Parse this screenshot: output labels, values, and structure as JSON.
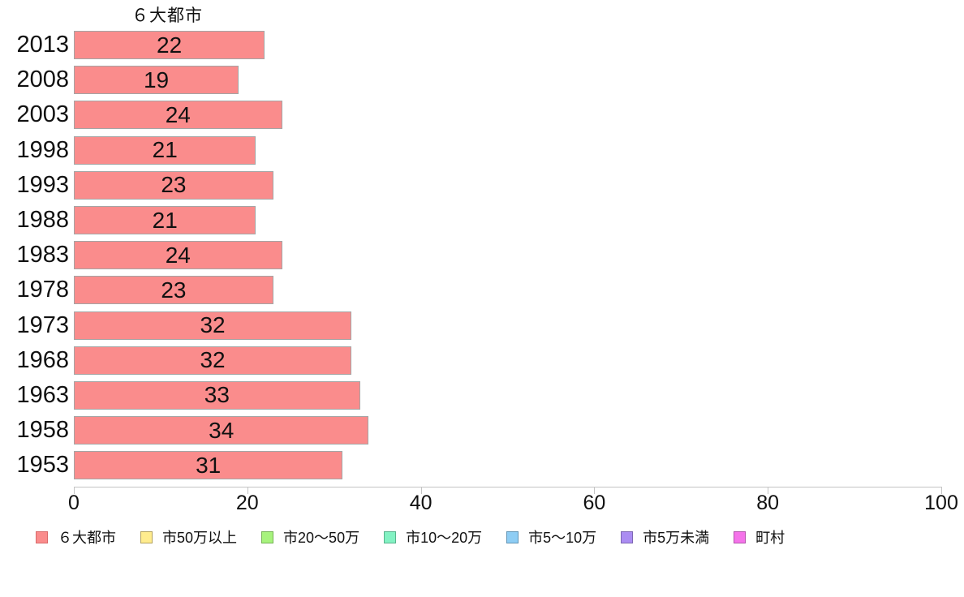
{
  "chart_data": {
    "type": "bar",
    "orientation": "horizontal",
    "title": "６大都市",
    "categories": [
      "2013",
      "2008",
      "2003",
      "1998",
      "1993",
      "1988",
      "1983",
      "1978",
      "1973",
      "1968",
      "1963",
      "1958",
      "1953"
    ],
    "values": [
      22,
      19,
      24,
      21,
      23,
      21,
      24,
      23,
      32,
      32,
      33,
      34,
      31
    ],
    "bar_labels": [
      "22",
      "19",
      "24",
      "21",
      "23",
      "21",
      "24",
      "23",
      "32",
      "32",
      "33",
      "34",
      "31"
    ],
    "xlabel": "",
    "ylabel": "",
    "xlim": [
      0,
      100
    ],
    "x_ticks": [
      "0",
      "20",
      "40",
      "60",
      "80",
      "100"
    ],
    "grid": false,
    "bar_color": "#fa8c8c",
    "bar_border_color": "#a5a5a5",
    "axis_color": "#c4c4c4",
    "text_color": "#111111",
    "legend_position": "bottom",
    "legend": [
      {
        "label": "６大都市",
        "color": "#fa8c8c",
        "border": "#d96a6a"
      },
      {
        "label": "市50万以上",
        "color": "#ffec8e",
        "border": "#b3a25f"
      },
      {
        "label": "市20～50万",
        "color": "#a7f37d",
        "border": "#76b356"
      },
      {
        "label": "市10～20万",
        "color": "#83f2c3",
        "border": "#58b38d"
      },
      {
        "label": "市5～10万",
        "color": "#8ecdf4",
        "border": "#6295b5"
      },
      {
        "label": "市5万未満",
        "color": "#ab8cf2",
        "border": "#7d66b3"
      },
      {
        "label": "町村",
        "color": "#f573ea",
        "border": "#b355ac"
      }
    ]
  }
}
